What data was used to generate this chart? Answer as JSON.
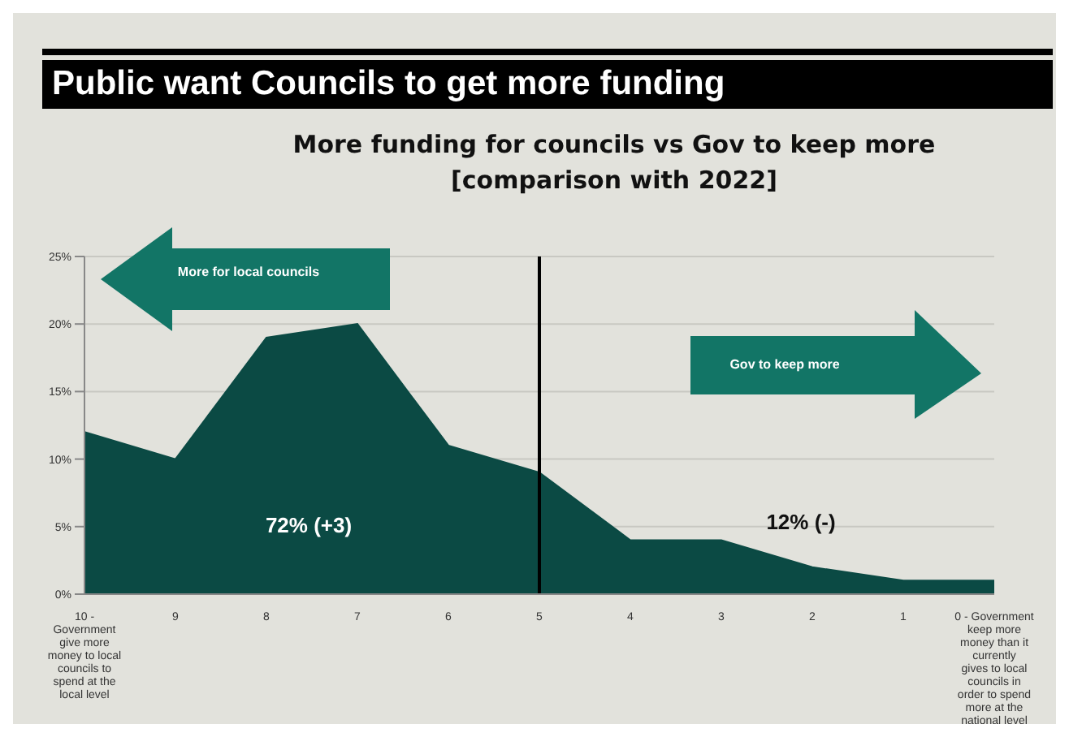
{
  "chart_data": {
    "type": "area",
    "title": "Public want Councils to get more funding",
    "subtitle": "More funding for councils vs Gov to keep more\n[comparison with 2022]",
    "categories": [
      "10 - Government give more money to local councils to spend at the local level",
      "9",
      "8",
      "7",
      "6",
      "5",
      "4",
      "3",
      "2",
      "1",
      "0 - Government keep more money than it currently gives to local councils in order to spend more at the national level"
    ],
    "series": [
      {
        "color": "#0b4a44",
        "values": [
          12,
          10,
          19,
          20,
          11,
          9,
          4,
          4,
          2,
          1,
          1
        ]
      }
    ],
    "ylim": [
      0,
      25
    ],
    "yticks": [
      {
        "value": 0,
        "label": "0%"
      },
      {
        "value": 5,
        "label": "5%"
      },
      {
        "value": 10,
        "label": "10%"
      },
      {
        "value": 15,
        "label": "15%"
      },
      {
        "value": 20,
        "label": "20%"
      },
      {
        "value": 25,
        "label": "25%"
      }
    ],
    "grid": "y",
    "ref_lines": [
      {
        "axis": "x",
        "value": "5",
        "color": "#000000"
      }
    ],
    "annotations": [
      "More for local councils",
      "Gov to keep more",
      "72% (+3)",
      "12% (-)"
    ]
  }
}
